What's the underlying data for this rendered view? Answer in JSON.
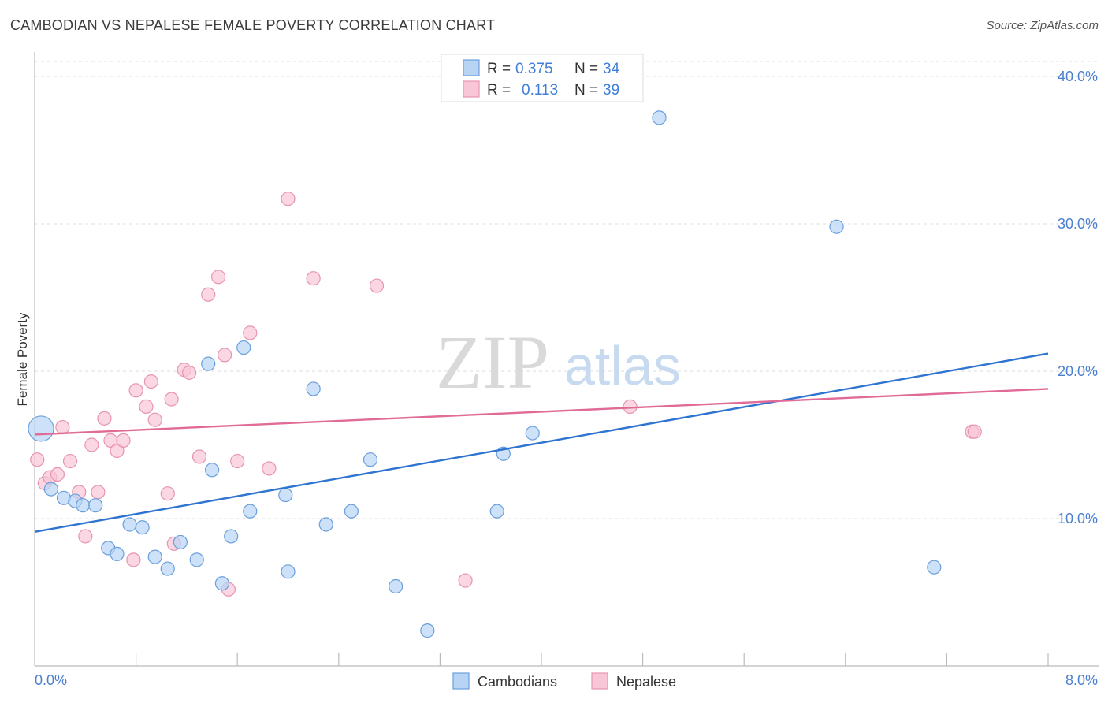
{
  "title": "CAMBODIAN VS NEPALESE FEMALE POVERTY CORRELATION CHART",
  "source": "Source: ZipAtlas.com",
  "watermark": {
    "part1": "ZIP",
    "part2": "atlas"
  },
  "colors": {
    "cambodians_fill": "#b8d4f5",
    "cambodians_stroke": "#6b9fdc",
    "cambodians_line": "#2f74d0",
    "nepalese_fill": "#f8c6d6",
    "nepalese_stroke": "#e894b0",
    "nepalese_line": "#e06b96",
    "tick_text": "#4a7fcf",
    "grid": "#dddddd"
  },
  "legend": {
    "rows": [
      {
        "r_label": "R =",
        "r_value": "0.375",
        "n_label": "N =",
        "n_value": "34"
      },
      {
        "r_label": "R =",
        "r_value": "0.113",
        "n_label": "N =",
        "n_value": "39"
      }
    ]
  },
  "chart_data": {
    "type": "scatter",
    "title": "CAMBODIAN VS NEPALESE FEMALE POVERTY CORRELATION CHART",
    "xlabel": "",
    "ylabel": "Female Poverty",
    "xlim": [
      0.0,
      8.0
    ],
    "ylim": [
      0.0,
      40.0
    ],
    "x_tick_labels": [
      "0.0%",
      "8.0%"
    ],
    "y_ticks": [
      10,
      20,
      30,
      40
    ],
    "y_tick_labels": [
      "10.0%",
      "20.0%",
      "30.0%",
      "40.0%"
    ],
    "grid": true,
    "legend_position": "top-center",
    "series": [
      {
        "name": "Cambodians",
        "color": "#6b9fdc",
        "trend": {
          "x": [
            0.0,
            8.0
          ],
          "y": [
            9.1,
            21.2
          ]
        },
        "points": [
          {
            "x": 0.05,
            "y": 16.1,
            "big": true
          },
          {
            "x": 0.13,
            "y": 12.0
          },
          {
            "x": 0.23,
            "y": 11.4
          },
          {
            "x": 0.32,
            "y": 11.2
          },
          {
            "x": 0.38,
            "y": 10.9
          },
          {
            "x": 0.48,
            "y": 10.9
          },
          {
            "x": 0.58,
            "y": 8.0
          },
          {
            "x": 0.65,
            "y": 7.6
          },
          {
            "x": 0.75,
            "y": 9.6
          },
          {
            "x": 0.85,
            "y": 9.4
          },
          {
            "x": 0.95,
            "y": 7.4
          },
          {
            "x": 1.05,
            "y": 6.6
          },
          {
            "x": 1.15,
            "y": 8.4
          },
          {
            "x": 1.28,
            "y": 7.2
          },
          {
            "x": 1.4,
            "y": 13.3
          },
          {
            "x": 1.37,
            "y": 20.5
          },
          {
            "x": 1.48,
            "y": 5.6
          },
          {
            "x": 1.55,
            "y": 8.8
          },
          {
            "x": 1.65,
            "y": 21.6
          },
          {
            "x": 1.7,
            "y": 10.5
          },
          {
            "x": 1.98,
            "y": 11.6
          },
          {
            "x": 2.0,
            "y": 6.4
          },
          {
            "x": 2.2,
            "y": 18.8
          },
          {
            "x": 2.3,
            "y": 9.6
          },
          {
            "x": 2.5,
            "y": 10.5
          },
          {
            "x": 2.65,
            "y": 14.0
          },
          {
            "x": 2.85,
            "y": 5.4
          },
          {
            "x": 3.1,
            "y": 2.4
          },
          {
            "x": 3.65,
            "y": 10.5
          },
          {
            "x": 3.7,
            "y": 14.4
          },
          {
            "x": 3.93,
            "y": 15.8
          },
          {
            "x": 4.93,
            "y": 37.2
          },
          {
            "x": 6.33,
            "y": 29.8
          },
          {
            "x": 7.1,
            "y": 6.7
          }
        ]
      },
      {
        "name": "Nepalese",
        "color": "#e894b0",
        "trend": {
          "x": [
            0.0,
            8.0
          ],
          "y": [
            15.7,
            18.8
          ]
        },
        "points": [
          {
            "x": 0.02,
            "y": 14.0
          },
          {
            "x": 0.08,
            "y": 12.4
          },
          {
            "x": 0.12,
            "y": 12.8
          },
          {
            "x": 0.18,
            "y": 13.0
          },
          {
            "x": 0.22,
            "y": 16.2
          },
          {
            "x": 0.28,
            "y": 13.9
          },
          {
            "x": 0.35,
            "y": 11.8
          },
          {
            "x": 0.4,
            "y": 8.8
          },
          {
            "x": 0.45,
            "y": 15.0
          },
          {
            "x": 0.5,
            "y": 11.8
          },
          {
            "x": 0.55,
            "y": 16.8
          },
          {
            "x": 0.6,
            "y": 15.3
          },
          {
            "x": 0.65,
            "y": 14.6
          },
          {
            "x": 0.7,
            "y": 15.3
          },
          {
            "x": 0.78,
            "y": 7.2
          },
          {
            "x": 0.8,
            "y": 18.7
          },
          {
            "x": 0.88,
            "y": 17.6
          },
          {
            "x": 0.92,
            "y": 19.3
          },
          {
            "x": 0.95,
            "y": 16.7
          },
          {
            "x": 1.05,
            "y": 11.7
          },
          {
            "x": 1.08,
            "y": 18.1
          },
          {
            "x": 1.1,
            "y": 8.3
          },
          {
            "x": 1.18,
            "y": 20.1
          },
          {
            "x": 1.22,
            "y": 19.9
          },
          {
            "x": 1.3,
            "y": 14.2
          },
          {
            "x": 1.37,
            "y": 25.2
          },
          {
            "x": 1.45,
            "y": 26.4
          },
          {
            "x": 1.5,
            "y": 21.1
          },
          {
            "x": 1.53,
            "y": 5.2
          },
          {
            "x": 1.6,
            "y": 13.9
          },
          {
            "x": 1.7,
            "y": 22.6
          },
          {
            "x": 1.85,
            "y": 13.4
          },
          {
            "x": 2.0,
            "y": 31.7
          },
          {
            "x": 2.2,
            "y": 26.3
          },
          {
            "x": 2.7,
            "y": 25.8
          },
          {
            "x": 3.4,
            "y": 5.8
          },
          {
            "x": 4.7,
            "y": 17.6
          },
          {
            "x": 7.4,
            "y": 15.9
          },
          {
            "x": 7.42,
            "y": 15.9
          }
        ]
      }
    ]
  }
}
